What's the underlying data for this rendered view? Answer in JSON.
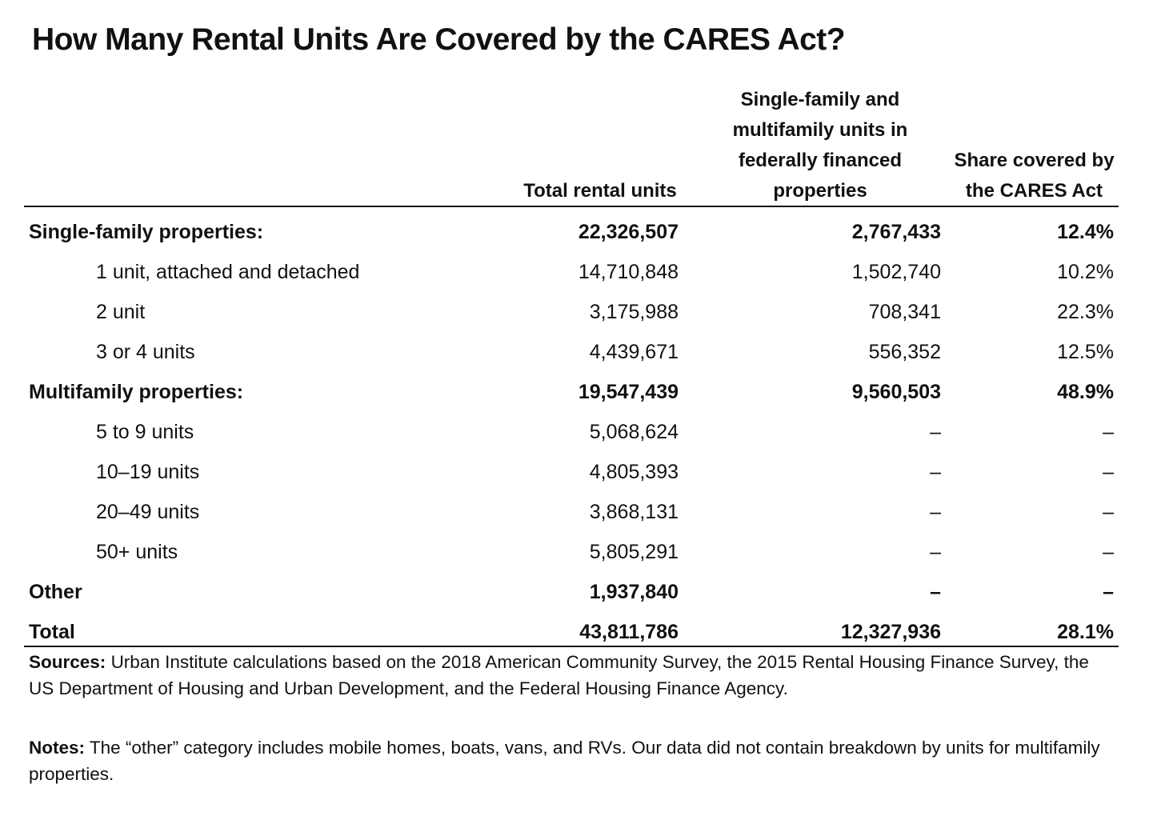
{
  "title": "How Many Rental Units Are Covered by the CARES Act?",
  "table": {
    "header": [
      "Total rental units",
      "Single-family and multifamily units in federally financed properties",
      "Share covered by the CARES Act"
    ],
    "rows": [
      [
        "Single-family properties:",
        "22,326,507",
        "2,767,433",
        "12.4%"
      ],
      [
        "1 unit, attached and detached",
        "14,710,848",
        "1,502,740",
        "10.2%"
      ],
      [
        "2 unit",
        "3,175,988",
        "708,341",
        "22.3%"
      ],
      [
        "3 or 4 units",
        "4,439,671",
        "556,352",
        "12.5%"
      ],
      [
        "Multifamily properties:",
        "19,547,439",
        "9,560,503",
        "48.9%"
      ],
      [
        "5 to 9 units",
        "5,068,624",
        "–",
        "–"
      ],
      [
        "10–19 units",
        "4,805,393",
        "–",
        "–"
      ],
      [
        "20–49 units",
        "3,868,131",
        "–",
        "–"
      ],
      [
        "50+ units",
        "5,805,291",
        "–",
        "–"
      ],
      [
        "Other",
        "1,937,840",
        "–",
        "–"
      ],
      [
        "Total",
        "43,811,786",
        "12,327,936",
        "28.1%"
      ]
    ]
  },
  "footer": {
    "sources": {
      "label": "Sources:",
      "text": "Urban Institute calculations based on the 2018 American Community Survey, the 2015 Rental Housing Finance Survey, the US Department of Housing and Urban Development, and the Federal Housing Finance Agency."
    },
    "notes": {
      "label": "Notes:",
      "text": "The “other” category includes mobile homes, boats, vans, and RVs. Our data did not contain breakdown by units for multifamily properties."
    }
  }
}
